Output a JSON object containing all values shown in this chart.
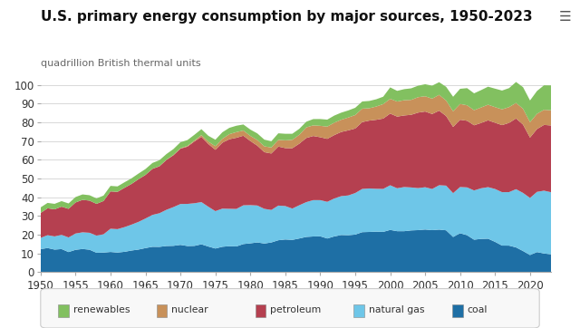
{
  "title": "U.S. primary energy consumption by major sources, 1950-2023",
  "ylabel": "quadrillion British thermal units",
  "ylim": [
    0,
    105
  ],
  "yticks": [
    0,
    10,
    20,
    30,
    40,
    50,
    60,
    70,
    80,
    90,
    100
  ],
  "xticks": [
    1950,
    1955,
    1960,
    1965,
    1970,
    1975,
    1980,
    1985,
    1990,
    1995,
    2000,
    2005,
    2010,
    2015,
    2020
  ],
  "years": [
    1950,
    1951,
    1952,
    1953,
    1954,
    1955,
    1956,
    1957,
    1958,
    1959,
    1960,
    1961,
    1962,
    1963,
    1964,
    1965,
    1966,
    1967,
    1968,
    1969,
    1970,
    1971,
    1972,
    1973,
    1974,
    1975,
    1976,
    1977,
    1978,
    1979,
    1980,
    1981,
    1982,
    1983,
    1984,
    1985,
    1986,
    1987,
    1988,
    1989,
    1990,
    1991,
    1992,
    1993,
    1994,
    1995,
    1996,
    1997,
    1998,
    1999,
    2000,
    2001,
    2002,
    2003,
    2004,
    2005,
    2006,
    2007,
    2008,
    2009,
    2010,
    2011,
    2012,
    2013,
    2014,
    2015,
    2016,
    2017,
    2018,
    2019,
    2020,
    2021,
    2022,
    2023
  ],
  "coal": [
    12.34,
    12.92,
    12.08,
    12.36,
    10.77,
    11.97,
    12.41,
    12.02,
    10.4,
    10.5,
    10.82,
    10.51,
    10.9,
    11.59,
    12.1,
    12.89,
    13.58,
    13.54,
    14.01,
    14.09,
    14.61,
    13.99,
    14.07,
    14.91,
    13.71,
    12.66,
    13.59,
    13.92,
    13.77,
    15.04,
    15.42,
    15.91,
    15.32,
    15.89,
    17.07,
    17.48,
    17.26,
    18.01,
    18.85,
    19.08,
    19.17,
    18.0,
    19.12,
    19.84,
    19.71,
    20.09,
    21.39,
    21.49,
    21.66,
    21.53,
    22.58,
    21.9,
    21.9,
    22.32,
    22.47,
    22.79,
    22.46,
    22.75,
    22.37,
    18.82,
    20.82,
    19.74,
    17.37,
    17.79,
    17.9,
    16.21,
    14.22,
    14.2,
    13.25,
    11.32,
    9.18,
    10.75,
    10.02,
    9.54
  ],
  "natural_gas": [
    5.97,
    6.87,
    7.03,
    7.6,
    7.79,
    8.69,
    8.89,
    9.03,
    9.16,
    9.74,
    12.39,
    12.49,
    13.17,
    13.8,
    14.76,
    15.77,
    17.01,
    17.95,
    19.31,
    20.67,
    21.79,
    22.47,
    22.74,
    22.51,
    21.22,
    19.95,
    20.35,
    19.93,
    20.0,
    20.67,
    20.39,
    19.69,
    18.51,
    17.35,
    18.5,
    17.83,
    16.71,
    17.74,
    18.56,
    19.4,
    19.3,
    19.57,
    20.22,
    20.77,
    21.26,
    22.16,
    23.05,
    23.22,
    22.86,
    22.93,
    23.82,
    22.9,
    23.56,
    22.92,
    22.41,
    22.57,
    21.96,
    23.68,
    23.84,
    23.38,
    24.65,
    25.53,
    26.27,
    27.0,
    27.5,
    28.21,
    28.5,
    28.55,
    31.07,
    31.0,
    30.47,
    32.14,
    33.5,
    33.16
  ],
  "petroleum": [
    13.32,
    14.33,
    14.47,
    15.04,
    15.28,
    16.57,
    17.33,
    17.16,
    16.93,
    17.77,
    19.92,
    19.89,
    20.98,
    21.71,
    22.77,
    23.25,
    24.56,
    25.04,
    26.6,
    27.67,
    29.52,
    30.55,
    32.95,
    34.84,
    33.45,
    32.73,
    35.17,
    37.12,
    37.97,
    37.12,
    34.2,
    31.93,
    30.23,
    30.12,
    31.5,
    30.92,
    32.2,
    32.84,
    34.22,
    34.21,
    33.55,
    33.6,
    33.83,
    34.24,
    34.73,
    34.44,
    35.67,
    36.19,
    36.82,
    37.52,
    38.26,
    38.24,
    38.19,
    38.76,
    40.3,
    40.39,
    39.99,
    39.77,
    37.14,
    35.33,
    35.89,
    35.54,
    34.77,
    34.85,
    35.66,
    35.34,
    35.78,
    36.93,
    37.74,
    36.45,
    32.18,
    33.52,
    35.09,
    35.62
  ],
  "nuclear": [
    0.0,
    0.0,
    0.0,
    0.0,
    0.0,
    0.0,
    0.0,
    0.0,
    0.0,
    0.0,
    0.01,
    0.02,
    0.02,
    0.03,
    0.04,
    0.04,
    0.06,
    0.09,
    0.14,
    0.15,
    0.24,
    0.41,
    0.54,
    0.91,
    1.27,
    1.9,
    2.11,
    2.7,
    3.02,
    2.78,
    2.74,
    3.01,
    3.13,
    3.2,
    3.55,
    4.15,
    4.47,
    4.75,
    5.66,
    5.67,
    6.1,
    6.54,
    6.61,
    6.52,
    6.84,
    7.18,
    7.17,
    6.6,
    7.07,
    7.73,
    7.86,
    8.03,
    8.14,
    7.97,
    8.22,
    8.16,
    8.21,
    8.45,
    8.27,
    8.35,
    8.43,
    8.26,
    8.05,
    8.27,
    8.33,
    8.34,
    8.42,
    8.42,
    8.27,
    8.46,
    8.25,
    8.13,
    8.06,
    8.1
  ],
  "renewables": [
    2.97,
    2.88,
    2.91,
    2.94,
    2.87,
    2.89,
    2.89,
    2.88,
    2.89,
    2.89,
    2.93,
    2.89,
    2.92,
    2.97,
    2.97,
    3.12,
    3.1,
    3.17,
    3.01,
    3.15,
    3.21,
    3.09,
    3.05,
    3.17,
    3.13,
    3.47,
    3.46,
    3.38,
    3.41,
    3.23,
    3.37,
    3.52,
    3.56,
    3.33,
    3.51,
    3.49,
    3.24,
    3.17,
    3.02,
    3.36,
    3.62,
    3.71,
    3.8,
    3.78,
    3.78,
    3.87,
    3.82,
    3.89,
    3.87,
    3.94,
    6.1,
    5.7,
    5.89,
    6.15,
    6.14,
    6.4,
    6.93,
    6.74,
    7.32,
    7.74,
    8.08,
    9.16,
    9.0,
    9.26,
    9.61,
    9.85,
    10.02,
    10.14,
    11.18,
    11.52,
    11.57,
    12.18,
    13.07,
    13.27
  ],
  "colors": {
    "coal": "#1e6fa5",
    "natural_gas": "#6ec6e8",
    "petroleum": "#b54050",
    "nuclear": "#c8915a",
    "renewables": "#82c060"
  },
  "background_color": "#ffffff",
  "grid_color": "#d8d8d8",
  "title_fontsize": 11,
  "label_fontsize": 8,
  "tick_fontsize": 8.5
}
